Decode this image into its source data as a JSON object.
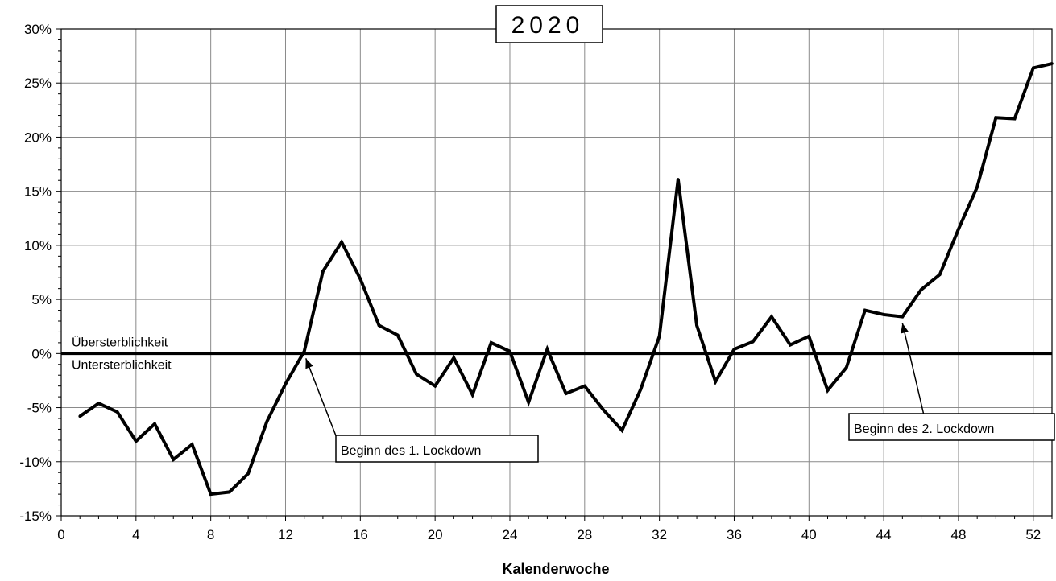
{
  "chart_data": {
    "type": "line",
    "title": "2020",
    "xlabel": "Kalenderwoche",
    "ylabel": "",
    "xlim": [
      0,
      53
    ],
    "ylim": [
      -15,
      30
    ],
    "xticks": [
      0,
      4,
      8,
      12,
      16,
      20,
      24,
      28,
      32,
      36,
      40,
      44,
      48,
      52
    ],
    "xtick_labels": [
      "0",
      "4",
      "8",
      "12",
      "16",
      "20",
      "24",
      "28",
      "32",
      "36",
      "40",
      "44",
      "48",
      "52"
    ],
    "yticks": [
      -15,
      -10,
      -5,
      0,
      5,
      10,
      15,
      20,
      25,
      30
    ],
    "ytick_labels": [
      "-15%",
      "-10%",
      "-5%",
      "0%",
      "5%",
      "10%",
      "15%",
      "20%",
      "25%",
      "30%"
    ],
    "grid": true,
    "reference_line": {
      "y": 0,
      "label_above": "Übersterblichkeit",
      "label_below": "Untersterblichkeit"
    },
    "series": [
      {
        "x": [
          1,
          2,
          3,
          4,
          5,
          6,
          7,
          8,
          9,
          10,
          11,
          12,
          13,
          14,
          15,
          16,
          17,
          18,
          19,
          20,
          21,
          22,
          23,
          24,
          25,
          26,
          27,
          28,
          29,
          30,
          31,
          32,
          33,
          34,
          35,
          36,
          37,
          38,
          39,
          40,
          41,
          42,
          43,
          44,
          45,
          46,
          47,
          48,
          49,
          50,
          51,
          52,
          53
        ],
        "values": [
          -5.8,
          -4.6,
          -5.4,
          -8.1,
          -6.5,
          -9.8,
          -8.4,
          -13.0,
          -12.8,
          -11.1,
          -6.3,
          -2.8,
          0.2,
          7.6,
          10.3,
          6.9,
          2.6,
          1.7,
          -1.9,
          -3.0,
          -0.4,
          -3.8,
          1.0,
          0.2,
          -4.5,
          0.4,
          -3.7,
          -3.0,
          -5.2,
          -7.1,
          -3.3,
          1.6,
          16.1,
          2.6,
          -2.6,
          0.4,
          1.1,
          3.4,
          0.8,
          1.6,
          -3.4,
          -1.3,
          4.0,
          3.6,
          3.4,
          5.9,
          7.3,
          11.5,
          15.4,
          21.8,
          21.7,
          26.4,
          26.8
        ]
      }
    ],
    "annotations": [
      {
        "text": "Beginn des 1. Lockdown",
        "x": 13,
        "y": 0
      },
      {
        "text": "Beginn des 2. Lockdown",
        "x": 45,
        "y": 3.4
      }
    ]
  }
}
